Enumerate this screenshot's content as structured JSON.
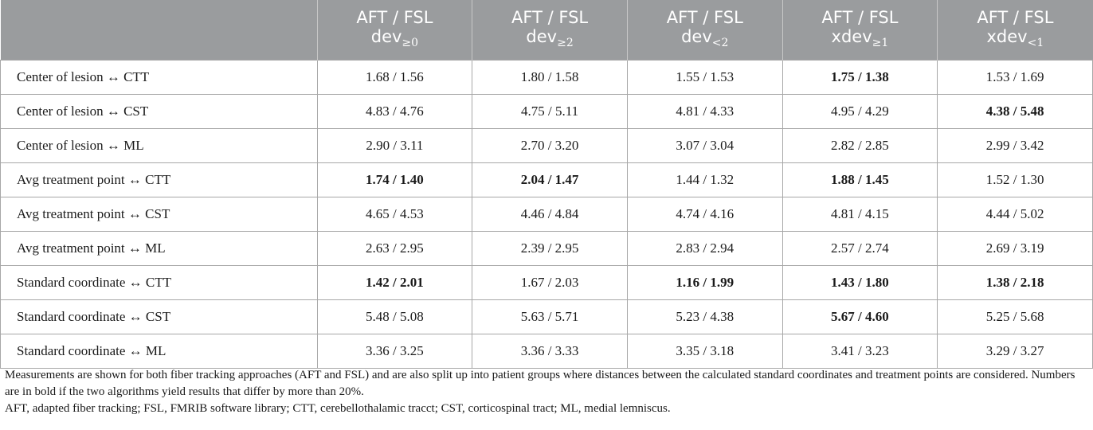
{
  "table": {
    "headers": [
      {
        "top": "",
        "base": "",
        "sub": ""
      },
      {
        "top": "AFT / FSL",
        "base": "dev",
        "sub": "≥0"
      },
      {
        "top": "AFT / FSL",
        "base": "dev",
        "sub": "≥2"
      },
      {
        "top": "AFT / FSL",
        "base": "dev",
        "sub": "<2"
      },
      {
        "top": "AFT / FSL",
        "base": "xdev",
        "sub": "≥1"
      },
      {
        "top": "AFT / FSL",
        "base": "xdev",
        "sub": "<1"
      }
    ],
    "rows": [
      {
        "label": "Center of lesion ↔ CTT",
        "cells": [
          {
            "text": "1.68 / 1.56",
            "bold": false
          },
          {
            "text": "1.80 / 1.58",
            "bold": false
          },
          {
            "text": "1.55 / 1.53",
            "bold": false
          },
          {
            "text": "1.75 / 1.38",
            "bold": true
          },
          {
            "text": "1.53 / 1.69",
            "bold": false
          }
        ]
      },
      {
        "label": "Center of lesion ↔ CST",
        "cells": [
          {
            "text": "4.83 / 4.76",
            "bold": false
          },
          {
            "text": "4.75 / 5.11",
            "bold": false
          },
          {
            "text": "4.81 / 4.33",
            "bold": false
          },
          {
            "text": "4.95 / 4.29",
            "bold": false
          },
          {
            "text": "4.38 / 5.48",
            "bold": true
          }
        ]
      },
      {
        "label": "Center of lesion ↔ ML",
        "cells": [
          {
            "text": "2.90 / 3.11",
            "bold": false
          },
          {
            "text": "2.70 / 3.20",
            "bold": false
          },
          {
            "text": "3.07 / 3.04",
            "bold": false
          },
          {
            "text": "2.82 / 2.85",
            "bold": false
          },
          {
            "text": "2.99 / 3.42",
            "bold": false
          }
        ]
      },
      {
        "label": "Avg treatment point ↔ CTT",
        "cells": [
          {
            "text": "1.74 / 1.40",
            "bold": true
          },
          {
            "text": "2.04 / 1.47",
            "bold": true
          },
          {
            "text": "1.44 / 1.32",
            "bold": false
          },
          {
            "text": "1.88 / 1.45",
            "bold": true
          },
          {
            "text": "1.52 / 1.30",
            "bold": false
          }
        ]
      },
      {
        "label": "Avg treatment point ↔ CST",
        "cells": [
          {
            "text": "4.65 / 4.53",
            "bold": false
          },
          {
            "text": "4.46 / 4.84",
            "bold": false
          },
          {
            "text": "4.74 / 4.16",
            "bold": false
          },
          {
            "text": "4.81 / 4.15",
            "bold": false
          },
          {
            "text": "4.44 / 5.02",
            "bold": false
          }
        ]
      },
      {
        "label": "Avg treatment point ↔ ML",
        "cells": [
          {
            "text": "2.63 / 2.95",
            "bold": false
          },
          {
            "text": "2.39 / 2.95",
            "bold": false
          },
          {
            "text": "2.83 / 2.94",
            "bold": false
          },
          {
            "text": "2.57 / 2.74",
            "bold": false
          },
          {
            "text": "2.69 / 3.19",
            "bold": false
          }
        ]
      },
      {
        "label": "Standard coordinate ↔ CTT",
        "cells": [
          {
            "text": "1.42 / 2.01",
            "bold": true
          },
          {
            "text": "1.67 / 2.03",
            "bold": false
          },
          {
            "text": "1.16 / 1.99",
            "bold": true
          },
          {
            "text": "1.43 / 1.80",
            "bold": true
          },
          {
            "text": "1.38 / 2.18",
            "bold": true
          }
        ]
      },
      {
        "label": "Standard coordinate ↔ CST",
        "cells": [
          {
            "text": "5.48 / 5.08",
            "bold": false
          },
          {
            "text": "5.63 / 5.71",
            "bold": false
          },
          {
            "text": "5.23 / 4.38",
            "bold": false
          },
          {
            "text": "5.67 / 4.60",
            "bold": true
          },
          {
            "text": "5.25 / 5.68",
            "bold": false
          }
        ]
      },
      {
        "label": "Standard coordinate ↔ ML",
        "cells": [
          {
            "text": "3.36 / 3.25",
            "bold": false
          },
          {
            "text": "3.36 / 3.33",
            "bold": false
          },
          {
            "text": "3.35 / 3.18",
            "bold": false
          },
          {
            "text": "3.41 / 3.23",
            "bold": false
          },
          {
            "text": "3.29 / 3.27",
            "bold": false
          }
        ]
      }
    ]
  },
  "footnote": {
    "note": "Measurements are shown for both fiber tracking approaches (AFT and FSL) and are also split up into patient groups where distances between the calculated standard coordinates and treatment points are considered. Numbers are in bold if the two algorithms yield results that differ by more than 20%.",
    "abbreviations": "AFT, adapted fiber tracking; FSL, FMRIB software library; CTT, cerebellothalamic tracct; CST, corticospinal tract; ML, medial lemniscus."
  },
  "colors": {
    "header_bg": "#9a9c9e",
    "header_text": "#ffffff",
    "grid": "#a7a7a7"
  }
}
